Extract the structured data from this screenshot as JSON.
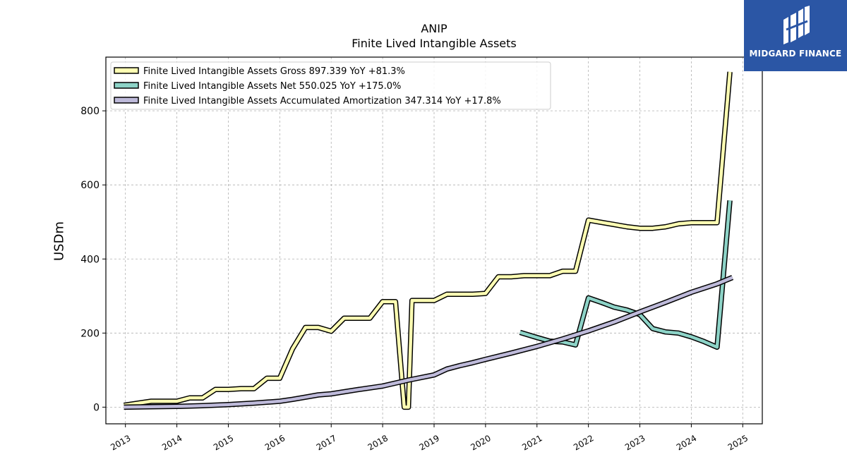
{
  "chart_data": {
    "type": "line",
    "title": "ANIP",
    "subtitle": "Finite Lived Intangible Assets",
    "ylabel": "USDm",
    "xlabel": "",
    "xlim": [
      2012.62,
      2025.38
    ],
    "ylim": [
      -45,
      945
    ],
    "x_ticks": [
      "2013",
      "2014",
      "2015",
      "2016",
      "2017",
      "2018",
      "2019",
      "2020",
      "2021",
      "2022",
      "2023",
      "2024",
      "2025"
    ],
    "y_ticks": [
      0,
      200,
      400,
      600,
      800
    ],
    "grid": true,
    "legend_position": "top-left",
    "series": [
      {
        "name": "Finite Lived Intangible Assets Gross",
        "legend_label": "Finite Lived Intangible Assets Gross  897.339 YoY +81.3%",
        "color": "#ffffb3",
        "points": [
          [
            2012.97,
            5
          ],
          [
            2013.5,
            16
          ],
          [
            2014.0,
            16
          ],
          [
            2014.25,
            25
          ],
          [
            2014.5,
            25
          ],
          [
            2014.75,
            48
          ],
          [
            2015.0,
            48
          ],
          [
            2015.25,
            50
          ],
          [
            2015.5,
            50
          ],
          [
            2015.75,
            78
          ],
          [
            2016.0,
            78
          ],
          [
            2016.25,
            158
          ],
          [
            2016.5,
            215
          ],
          [
            2016.75,
            215
          ],
          [
            2017.0,
            205
          ],
          [
            2017.25,
            240
          ],
          [
            2017.5,
            240
          ],
          [
            2017.75,
            240
          ],
          [
            2018.0,
            285
          ],
          [
            2018.25,
            285
          ],
          [
            2018.42,
            0
          ],
          [
            2018.5,
            0
          ],
          [
            2018.57,
            288
          ],
          [
            2018.75,
            288
          ],
          [
            2019.0,
            288
          ],
          [
            2019.25,
            305
          ],
          [
            2019.5,
            305
          ],
          [
            2019.75,
            305
          ],
          [
            2020.0,
            307
          ],
          [
            2020.25,
            352
          ],
          [
            2020.5,
            352
          ],
          [
            2020.75,
            355
          ],
          [
            2021.0,
            355
          ],
          [
            2021.25,
            355
          ],
          [
            2021.5,
            367
          ],
          [
            2021.75,
            367
          ],
          [
            2022.0,
            505
          ],
          [
            2022.25,
            499
          ],
          [
            2022.5,
            493
          ],
          [
            2022.75,
            487
          ],
          [
            2023.0,
            483
          ],
          [
            2023.25,
            483
          ],
          [
            2023.5,
            487
          ],
          [
            2023.75,
            495
          ],
          [
            2024.0,
            498
          ],
          [
            2024.25,
            498
          ],
          [
            2024.5,
            498
          ],
          [
            2024.75,
            905
          ]
        ]
      },
      {
        "name": "Finite Lived Intangible Assets Net",
        "legend_label": "Finite Lived Intangible Assets Net  550.025 YoY +175.0%",
        "color": "#8dd3c7",
        "points": [
          [
            2020.67,
            202
          ],
          [
            2021.0,
            188
          ],
          [
            2021.25,
            178
          ],
          [
            2021.5,
            176
          ],
          [
            2021.75,
            168
          ],
          [
            2022.0,
            295
          ],
          [
            2022.25,
            283
          ],
          [
            2022.5,
            270
          ],
          [
            2022.75,
            262
          ],
          [
            2023.0,
            250
          ],
          [
            2023.25,
            212
          ],
          [
            2023.5,
            203
          ],
          [
            2023.75,
            200
          ],
          [
            2024.0,
            190
          ],
          [
            2024.25,
            177
          ],
          [
            2024.5,
            162
          ],
          [
            2024.75,
            558
          ]
        ]
      },
      {
        "name": "Finite Lived Intangible Assets Accumulated Amortization",
        "legend_label": "Finite Lived Intangible Assets Accumulated Amortization  347.314 YoY +17.8%",
        "color": "#bebada",
        "points": [
          [
            2012.97,
            0
          ],
          [
            2013.5,
            1
          ],
          [
            2014.0,
            2
          ],
          [
            2014.5,
            4
          ],
          [
            2015.0,
            7
          ],
          [
            2015.5,
            11
          ],
          [
            2016.0,
            16
          ],
          [
            2016.25,
            21
          ],
          [
            2016.5,
            27
          ],
          [
            2016.75,
            33
          ],
          [
            2017.0,
            36
          ],
          [
            2017.5,
            47
          ],
          [
            2018.0,
            57
          ],
          [
            2018.5,
            73
          ],
          [
            2019.0,
            87
          ],
          [
            2019.25,
            103
          ],
          [
            2019.5,
            112
          ],
          [
            2019.75,
            120
          ],
          [
            2020.0,
            129
          ],
          [
            2020.5,
            146
          ],
          [
            2021.0,
            164
          ],
          [
            2021.5,
            184
          ],
          [
            2022.0,
            206
          ],
          [
            2022.5,
            230
          ],
          [
            2023.0,
            257
          ],
          [
            2023.5,
            283
          ],
          [
            2024.0,
            310
          ],
          [
            2024.5,
            333
          ],
          [
            2024.8,
            350
          ]
        ]
      }
    ]
  },
  "watermark": {
    "text": "MIDGARD FINANCE",
    "background": "#2b56a5"
  }
}
